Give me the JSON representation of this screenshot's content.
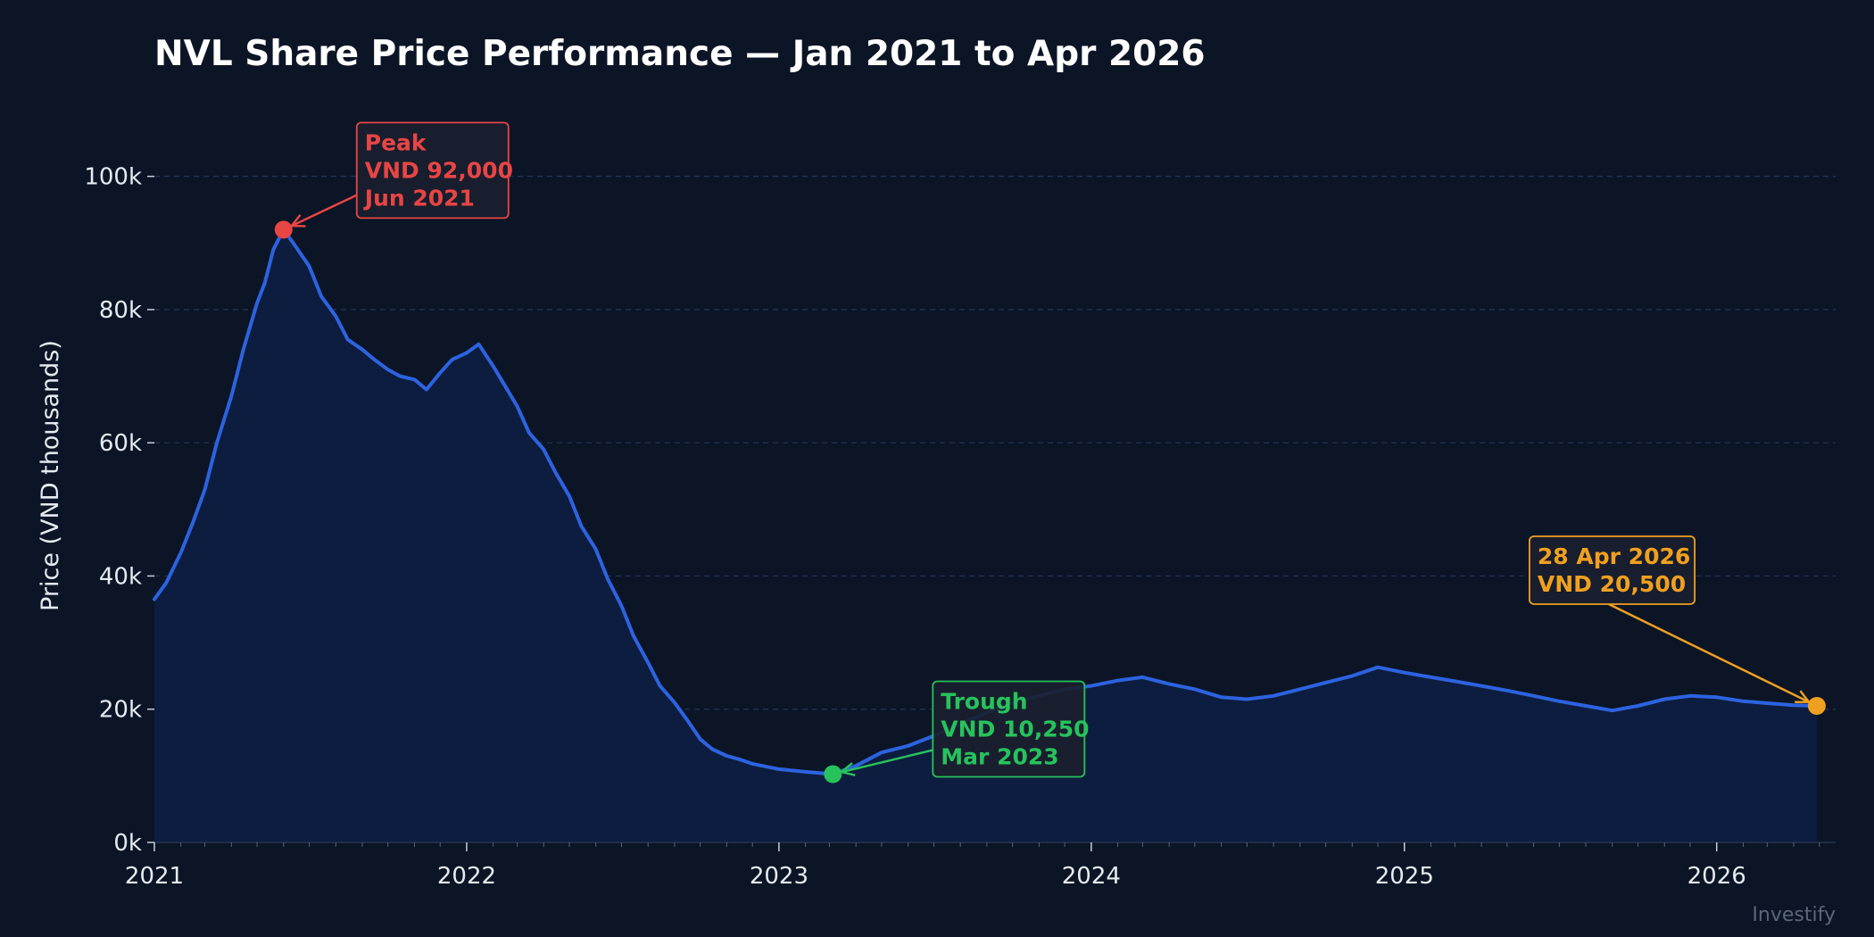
{
  "chart_data": {
    "type": "area",
    "title": "NVL Share Price Performance — Jan 2021 to Apr 2026",
    "xlabel": "",
    "ylabel": "Price (VND thousands)",
    "xlim": [
      "2021-01-01",
      "2026-05-20"
    ],
    "ylim": [
      0,
      110000
    ],
    "x_ticks": [
      "2021",
      "2022",
      "2023",
      "2024",
      "2025",
      "2026"
    ],
    "y_ticks": [
      0,
      20000,
      40000,
      60000,
      80000,
      100000
    ],
    "y_tick_labels": [
      "0k",
      "20k",
      "40k",
      "60k",
      "80k",
      "100k"
    ],
    "grid": "horizontal dashed",
    "colors": {
      "background": "#0b1526",
      "line": "#2d63e0",
      "fill": "#0e1d40",
      "grid": "#243654",
      "peak": "#e84545",
      "trough": "#27c25c",
      "latest": "#f0a020"
    },
    "series": [
      {
        "values": [
          [
            "2021-01-01",
            36500
          ],
          [
            "2021-01-15",
            39000
          ],
          [
            "2021-02-01",
            43500
          ],
          [
            "2021-02-15",
            48000
          ],
          [
            "2021-03-01",
            53000
          ],
          [
            "2021-03-15",
            60000
          ],
          [
            "2021-04-01",
            67000
          ],
          [
            "2021-04-15",
            74000
          ],
          [
            "2021-05-01",
            81000
          ],
          [
            "2021-05-10",
            84000
          ],
          [
            "2021-05-20",
            89000
          ],
          [
            "2021-06-01",
            92000
          ],
          [
            "2021-06-15",
            89500
          ],
          [
            "2021-07-01",
            86500
          ],
          [
            "2021-07-15",
            82000
          ],
          [
            "2021-08-01",
            79000
          ],
          [
            "2021-08-15",
            75500
          ],
          [
            "2021-09-01",
            74000
          ],
          [
            "2021-09-15",
            72500
          ],
          [
            "2021-10-01",
            71000
          ],
          [
            "2021-10-15",
            70000
          ],
          [
            "2021-11-01",
            69500
          ],
          [
            "2021-11-15",
            68000
          ],
          [
            "2021-12-01",
            70500
          ],
          [
            "2021-12-15",
            72500
          ],
          [
            "2022-01-01",
            73500
          ],
          [
            "2022-01-15",
            74800
          ],
          [
            "2022-02-01",
            71500
          ],
          [
            "2022-02-15",
            68500
          ],
          [
            "2022-03-01",
            65500
          ],
          [
            "2022-03-15",
            61500
          ],
          [
            "2022-04-01",
            59000
          ],
          [
            "2022-04-15",
            55500
          ],
          [
            "2022-05-01",
            52000
          ],
          [
            "2022-05-15",
            47500
          ],
          [
            "2022-06-01",
            44000
          ],
          [
            "2022-06-15",
            39500
          ],
          [
            "2022-07-01",
            35500
          ],
          [
            "2022-07-15",
            31000
          ],
          [
            "2022-08-01",
            27000
          ],
          [
            "2022-08-15",
            23500
          ],
          [
            "2022-09-01",
            21000
          ],
          [
            "2022-09-15",
            18500
          ],
          [
            "2022-10-01",
            15500
          ],
          [
            "2022-10-15",
            14000
          ],
          [
            "2022-11-01",
            13000
          ],
          [
            "2022-11-15",
            12500
          ],
          [
            "2022-12-01",
            11800
          ],
          [
            "2023-01-01",
            11000
          ],
          [
            "2023-02-01",
            10600
          ],
          [
            "2023-03-05",
            10250
          ],
          [
            "2023-04-01",
            11500
          ],
          [
            "2023-05-01",
            13500
          ],
          [
            "2023-06-01",
            14500
          ],
          [
            "2023-07-01",
            16000
          ],
          [
            "2023-08-01",
            17800
          ],
          [
            "2023-09-01",
            19500
          ],
          [
            "2023-10-01",
            21000
          ],
          [
            "2023-11-01",
            22000
          ],
          [
            "2023-12-01",
            23000
          ],
          [
            "2024-01-01",
            23500
          ],
          [
            "2024-02-01",
            24300
          ],
          [
            "2024-03-01",
            24800
          ],
          [
            "2024-04-01",
            23800
          ],
          [
            "2024-05-01",
            23000
          ],
          [
            "2024-06-01",
            21800
          ],
          [
            "2024-07-01",
            21500
          ],
          [
            "2024-08-01",
            22000
          ],
          [
            "2024-09-01",
            23000
          ],
          [
            "2024-10-01",
            24000
          ],
          [
            "2024-11-01",
            25000
          ],
          [
            "2024-12-01",
            26300
          ],
          [
            "2025-01-01",
            25500
          ],
          [
            "2025-02-01",
            24800
          ],
          [
            "2025-03-01",
            24200
          ],
          [
            "2025-04-01",
            23500
          ],
          [
            "2025-05-01",
            22800
          ],
          [
            "2025-06-01",
            22000
          ],
          [
            "2025-07-01",
            21200
          ],
          [
            "2025-08-01",
            20500
          ],
          [
            "2025-09-01",
            19800
          ],
          [
            "2025-10-01",
            20500
          ],
          [
            "2025-11-01",
            21500
          ],
          [
            "2025-12-01",
            22000
          ],
          [
            "2026-01-01",
            21800
          ],
          [
            "2026-02-01",
            21200
          ],
          [
            "2026-03-01",
            20900
          ],
          [
            "2026-04-01",
            20600
          ],
          [
            "2026-04-28",
            20500
          ]
        ]
      }
    ],
    "annotations": [
      {
        "kind": "peak",
        "lines": [
          "Peak",
          "VND 92,000",
          "Jun 2021"
        ],
        "x": "2021-06-01",
        "y": 92000,
        "color": "#e84545"
      },
      {
        "kind": "trough",
        "lines": [
          "Trough",
          "VND 10,250",
          "Mar 2023"
        ],
        "x": "2023-03-05",
        "y": 10250,
        "color": "#27c25c"
      },
      {
        "kind": "latest",
        "lines": [
          "28 Apr 2026",
          "VND 20,500"
        ],
        "x": "2026-04-28",
        "y": 20500,
        "color": "#f0a020"
      }
    ],
    "watermark": "Investify"
  }
}
